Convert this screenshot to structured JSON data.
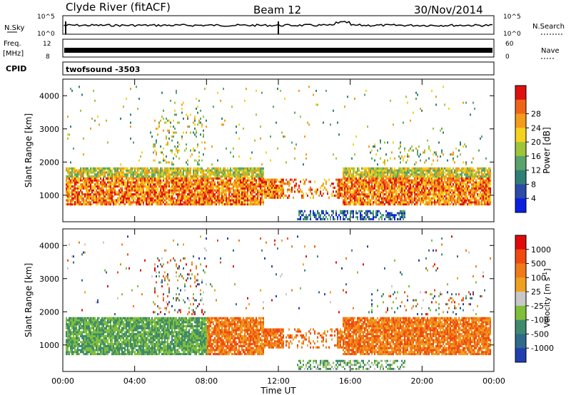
{
  "header": {
    "station": "Clyde River (fitACF)",
    "beam": "Beam 12",
    "date": "30/Nov/2014"
  },
  "info_panels": {
    "nsky_label": "N.Sky",
    "nsky_ticks": [
      "10^5",
      "10^0"
    ],
    "nsearch_label": "N.Search",
    "nsearch_ticks": [
      "10^5",
      "10^0"
    ],
    "freq_label_1": "Freq.",
    "freq_label_2": "[MHz]",
    "freq_ticks": [
      "12",
      "8"
    ],
    "nave_label": "Nave",
    "nave_ticks": [
      "60",
      "0"
    ],
    "cpid_label": "CPID",
    "cpid_value": "twofsound -3503"
  },
  "chart_data": [
    {
      "type": "heatmap",
      "name": "power",
      "ylabel": "Slant Range [km]",
      "xlabel": "Time UT",
      "ylim": [
        200,
        4500
      ],
      "yticks": [
        "1000",
        "2000",
        "3000",
        "4000"
      ],
      "xticks": [
        "00:00",
        "04:00",
        "08:00",
        "12:00",
        "16:00",
        "20:00",
        "00:00"
      ],
      "colorbar_label": "Power [dB]",
      "colorbar_ticks": [
        "4",
        "8",
        "12",
        "16",
        "20",
        "24",
        "28"
      ],
      "colors": [
        "#0a1fe0",
        "#2c4aa8",
        "#2f7f76",
        "#5aa36a",
        "#9ec53a",
        "#f5d21e",
        "#f59b1a",
        "#f0641a",
        "#e01010"
      ]
    },
    {
      "type": "heatmap",
      "name": "velocity",
      "ylabel": "Slant Range [km]",
      "xlabel": "Time UT",
      "ylim": [
        200,
        4500
      ],
      "yticks": [
        "1000",
        "2000",
        "3000",
        "4000"
      ],
      "xticks": [
        "00:00",
        "04:00",
        "08:00",
        "12:00",
        "16:00",
        "20:00",
        "00:00"
      ],
      "colorbar_label": "Velocity [m s",
      "colorbar_label_sup": "-1",
      "colorbar_label_end": "]",
      "colorbar_ticks": [
        "1000",
        "500",
        "100",
        "25",
        "-25",
        "-100",
        "-500",
        "-1000"
      ],
      "colors": [
        "#1f3fb0",
        "#2f6a8a",
        "#3f8a6e",
        "#7fbf3a",
        "#c8c8c8",
        "#f0a020",
        "#f07a18",
        "#f04a10",
        "#e00a0a"
      ]
    }
  ]
}
